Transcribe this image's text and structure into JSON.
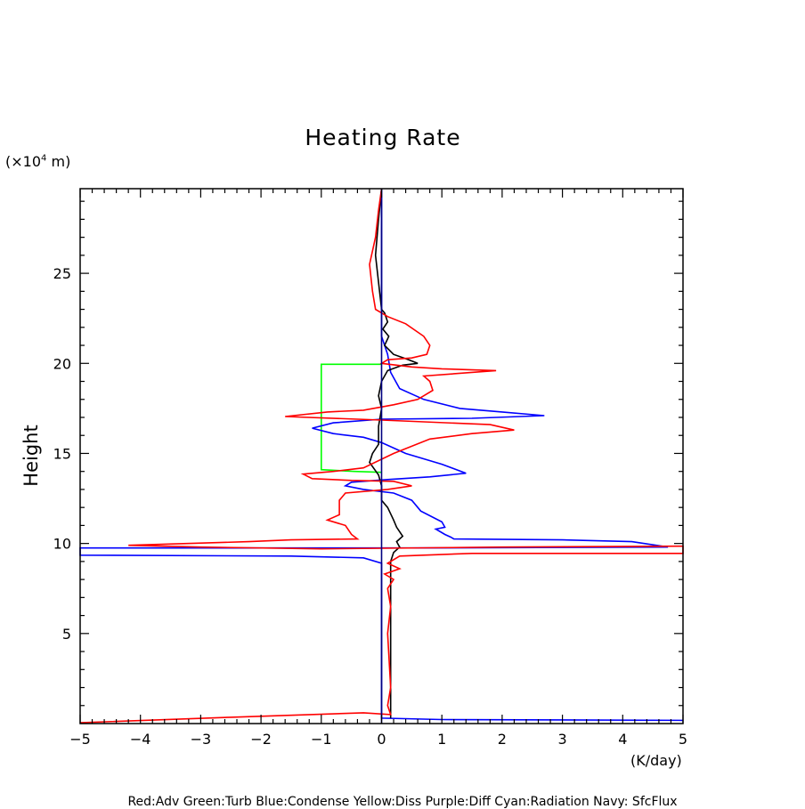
{
  "chart_data": {
    "type": "line",
    "title": "Heating Rate",
    "ylabel": "Height",
    "yunit": "(×10⁴ m)",
    "yunit_base": "(×10",
    "yunit_exp": "4",
    "yunit_rest": " m)",
    "xunit": "(K/day)",
    "xlim": [
      -5,
      5
    ],
    "ylim": [
      0,
      29.7
    ],
    "x_ticks": [
      "−5",
      "−4",
      "−3",
      "−2",
      "−1",
      "0",
      "1",
      "2",
      "3",
      "4",
      "5"
    ],
    "y_ticks": [
      "5",
      "10",
      "15",
      "20",
      "25"
    ],
    "legend_text": "Red:Adv Green:Turb Blue:Condense Yellow:Diss Purple:Diff Cyan:Radiation Navy: SfcFlux",
    "series": [
      {
        "color": "#00ff00",
        "points": [
          [
            0,
            19.95
          ],
          [
            -1.0,
            19.95
          ],
          [
            -1.0,
            14.1
          ],
          [
            -0.45,
            14.0
          ],
          [
            0,
            13.95
          ]
        ]
      },
      {
        "color": "#0000ff",
        "points": [
          [
            0,
            29.7
          ],
          [
            0,
            21.5
          ],
          [
            0.1,
            20.5
          ],
          [
            0.15,
            19.5
          ],
          [
            0.3,
            18.6
          ],
          [
            0.7,
            18.0
          ],
          [
            1.3,
            17.5
          ],
          [
            2.0,
            17.3
          ],
          [
            2.7,
            17.1
          ],
          [
            1.5,
            16.95
          ],
          [
            0,
            16.9
          ],
          [
            -0.8,
            16.7
          ],
          [
            -1.15,
            16.4
          ],
          [
            -0.8,
            16.1
          ],
          [
            -0.3,
            15.9
          ],
          [
            0,
            15.6
          ],
          [
            0.4,
            15.0
          ],
          [
            1.0,
            14.4
          ],
          [
            1.4,
            13.9
          ],
          [
            0.8,
            13.7
          ],
          [
            0.1,
            13.55
          ],
          [
            -0.5,
            13.4
          ],
          [
            -0.6,
            13.2
          ],
          [
            -0.3,
            13.0
          ],
          [
            0.2,
            12.8
          ],
          [
            0.5,
            12.4
          ],
          [
            0.65,
            11.8
          ],
          [
            1.0,
            11.2
          ],
          [
            1.05,
            10.9
          ],
          [
            0.9,
            10.8
          ],
          [
            1.05,
            10.5
          ],
          [
            1.15,
            10.35
          ],
          [
            1.2,
            10.25
          ],
          [
            3.0,
            10.2
          ],
          [
            4.15,
            10.1
          ],
          [
            4.75,
            9.8
          ],
          [
            0.5,
            9.75
          ],
          [
            -5,
            9.75
          ],
          [
            -5,
            9.35
          ],
          [
            -1.5,
            9.3
          ],
          [
            -0.3,
            9.2
          ],
          [
            0,
            8.9
          ],
          [
            0,
            0.3
          ],
          [
            1.0,
            0.22
          ],
          [
            5,
            0.18
          ]
        ]
      },
      {
        "color": "#000000",
        "points": [
          [
            0,
            29.7
          ],
          [
            -0.05,
            28.0
          ],
          [
            -0.1,
            26.0
          ],
          [
            -0.05,
            24.5
          ],
          [
            0,
            23.0
          ],
          [
            0.05,
            22.8
          ],
          [
            0.1,
            22.3
          ],
          [
            0.02,
            21.9
          ],
          [
            0.12,
            21.5
          ],
          [
            0.05,
            21.0
          ],
          [
            0.2,
            20.5
          ],
          [
            0.45,
            20.2
          ],
          [
            0.6,
            20.0
          ],
          [
            0.35,
            19.9
          ],
          [
            0.1,
            19.6
          ],
          [
            0,
            19.0
          ],
          [
            -0.05,
            18.2
          ],
          [
            0,
            17.5
          ],
          [
            -0.05,
            16.5
          ],
          [
            -0.05,
            15.5
          ],
          [
            -0.15,
            15.0
          ],
          [
            -0.2,
            14.5
          ],
          [
            -0.05,
            13.8
          ],
          [
            0,
            13.2
          ],
          [
            0,
            12.4
          ],
          [
            0.1,
            12.0
          ],
          [
            0.2,
            11.3
          ],
          [
            0.25,
            10.9
          ],
          [
            0.35,
            10.4
          ],
          [
            0.25,
            10.1
          ],
          [
            0.3,
            9.8
          ],
          [
            0.2,
            9.5
          ],
          [
            0.15,
            9.0
          ],
          [
            0.15,
            5.0
          ],
          [
            0.15,
            0.3
          ]
        ]
      },
      {
        "color": "#ff0000",
        "points": [
          [
            0,
            29.7
          ],
          [
            -0.05,
            28.5
          ],
          [
            -0.1,
            27.0
          ],
          [
            -0.2,
            25.5
          ],
          [
            -0.15,
            24.0
          ],
          [
            -0.1,
            23.0
          ],
          [
            0.1,
            22.6
          ],
          [
            0.4,
            22.2
          ],
          [
            0.7,
            21.5
          ],
          [
            0.8,
            21.0
          ],
          [
            0.75,
            20.5
          ],
          [
            0.5,
            20.3
          ],
          [
            0.1,
            20.2
          ],
          [
            0,
            20.0
          ],
          [
            0.5,
            19.8
          ],
          [
            1.0,
            19.7
          ],
          [
            1.9,
            19.6
          ],
          [
            0.7,
            19.3
          ],
          [
            0.8,
            19.0
          ],
          [
            0.85,
            18.5
          ],
          [
            0.6,
            18.0
          ],
          [
            0.2,
            17.7
          ],
          [
            -0.3,
            17.4
          ],
          [
            -0.9,
            17.3
          ],
          [
            -1.6,
            17.05
          ],
          [
            0,
            16.85
          ],
          [
            1.8,
            16.6
          ],
          [
            2.2,
            16.3
          ],
          [
            1.5,
            16.1
          ],
          [
            0.8,
            15.8
          ],
          [
            0.2,
            15.0
          ],
          [
            -0.3,
            14.2
          ],
          [
            -0.8,
            14.0
          ],
          [
            -1.3,
            13.85
          ],
          [
            -1.15,
            13.6
          ],
          [
            -0.5,
            13.5
          ],
          [
            0.2,
            13.45
          ],
          [
            0.5,
            13.2
          ],
          [
            0.1,
            13.0
          ],
          [
            -0.6,
            12.8
          ],
          [
            -0.7,
            12.4
          ],
          [
            -0.7,
            11.6
          ],
          [
            -0.9,
            11.3
          ],
          [
            -0.6,
            11.0
          ],
          [
            -0.5,
            10.5
          ],
          [
            -0.4,
            10.25
          ],
          [
            -1.5,
            10.2
          ],
          [
            -2.2,
            10.1
          ],
          [
            -4.2,
            9.9
          ],
          [
            -3.0,
            9.8
          ],
          [
            -1.0,
            9.7
          ],
          [
            2.0,
            9.8
          ],
          [
            5,
            9.85
          ],
          [
            5,
            9.45
          ],
          [
            1.5,
            9.45
          ],
          [
            0.3,
            9.3
          ],
          [
            0.1,
            8.9
          ],
          [
            0.3,
            8.6
          ],
          [
            0.05,
            8.3
          ],
          [
            0.2,
            8.0
          ],
          [
            0.1,
            7.5
          ],
          [
            0.15,
            6.5
          ],
          [
            0.1,
            5.0
          ],
          [
            0.15,
            2.0
          ],
          [
            0.1,
            1.0
          ],
          [
            0.15,
            0.5
          ],
          [
            -0.3,
            0.6
          ],
          [
            -2.5,
            0.35
          ],
          [
            -5,
            0.05
          ]
        ]
      },
      {
        "color": "#000080",
        "points": [
          [
            0,
            29.7
          ],
          [
            0,
            0
          ]
        ]
      }
    ]
  }
}
